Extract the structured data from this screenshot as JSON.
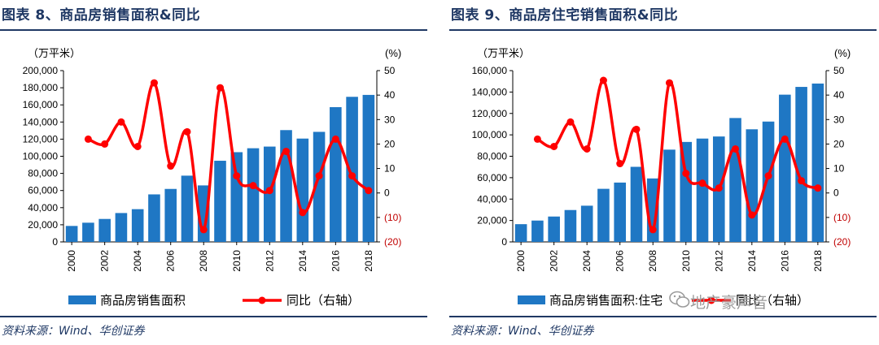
{
  "charts": [
    {
      "title": "图表 8、商品房销售面积&同比",
      "source": "资料来源：Wind、华创证券",
      "chart_data": {
        "type": "bar+line",
        "categories": [
          "2000",
          "2001",
          "2002",
          "2003",
          "2004",
          "2005",
          "2006",
          "2007",
          "2008",
          "2009",
          "2010",
          "2011",
          "2012",
          "2013",
          "2014",
          "2015",
          "2016",
          "2017",
          "2018"
        ],
        "x_tick_labels": [
          "2000",
          "2002",
          "2004",
          "2006",
          "2008",
          "2010",
          "2012",
          "2014",
          "2016",
          "2018"
        ],
        "left_axis": {
          "unit_label": "（万平米）",
          "min": 0,
          "max": 200000,
          "ticks": [
            "0",
            "20,000",
            "40,000",
            "60,000",
            "80,000",
            "100,000",
            "120,000",
            "140,000",
            "160,000",
            "180,000",
            "200,000"
          ]
        },
        "right_axis": {
          "unit_label": "(%)",
          "min": -20,
          "max": 50,
          "ticks": [
            "(20)",
            "(10)",
            "0",
            "10",
            "20",
            "30",
            "40",
            "50"
          ]
        },
        "series": [
          {
            "name": "商品房销售面积",
            "type": "bar",
            "axis": "left",
            "color": "#1f77c4",
            "values": [
              18637,
              22412,
              26808,
              33718,
              38232,
              55486,
              61857,
              77355,
              65970,
              94755,
              104765,
              109366,
              111304,
              130551,
              120649,
              128495,
              157349,
              169408,
              171654
            ]
          },
          {
            "name": "同比（右轴）",
            "type": "line",
            "axis": "right",
            "color": "#ff0000",
            "values": [
              null,
              22,
              20,
              29,
              19,
              45,
              11,
              25,
              -15,
              43,
              7,
              3,
              1,
              17,
              -8,
              7,
              22,
              7,
              1
            ]
          }
        ]
      }
    },
    {
      "title": "图表 9、商品房住宅销售面积&同比",
      "source": "资料来源：Wind、华创证券",
      "watermark": "地产豪声音",
      "chart_data": {
        "type": "bar+line",
        "categories": [
          "2000",
          "2001",
          "2002",
          "2003",
          "2004",
          "2005",
          "2006",
          "2007",
          "2008",
          "2009",
          "2010",
          "2011",
          "2012",
          "2013",
          "2014",
          "2015",
          "2016",
          "2017",
          "2018"
        ],
        "x_tick_labels": [
          "2000",
          "2002",
          "2004",
          "2006",
          "2008",
          "2010",
          "2012",
          "2014",
          "2016",
          "2018"
        ],
        "left_axis": {
          "unit_label": "（万平米）",
          "min": 0,
          "max": 160000,
          "ticks": [
            "0",
            "20,000",
            "40,000",
            "60,000",
            "80,000",
            "100,000",
            "120,000",
            "140,000",
            "160,000"
          ]
        },
        "right_axis": {
          "unit_label": "(%)",
          "min": -20,
          "max": 50,
          "ticks": [
            "(20)",
            "(10)",
            "0",
            "10",
            "20",
            "30",
            "40",
            "50"
          ]
        },
        "series": [
          {
            "name": "商品房销售面积:住宅",
            "type": "bar",
            "axis": "left",
            "color": "#1f77c4",
            "values": [
              16570,
              19939,
              23702,
              29779,
              33820,
              49588,
              55423,
              70136,
              59280,
              86185,
              93377,
              96528,
              98468,
              115723,
              105188,
              112412,
              137540,
              144789,
              147929
            ]
          },
          {
            "name": "同比（右轴）",
            "type": "line",
            "axis": "right",
            "color": "#ff0000",
            "values": [
              null,
              22,
              19,
              29,
              18,
              46,
              12,
              26,
              -15,
              45,
              8,
              4,
              2,
              18,
              -9,
              7,
              22,
              5,
              2
            ]
          }
        ]
      }
    }
  ]
}
